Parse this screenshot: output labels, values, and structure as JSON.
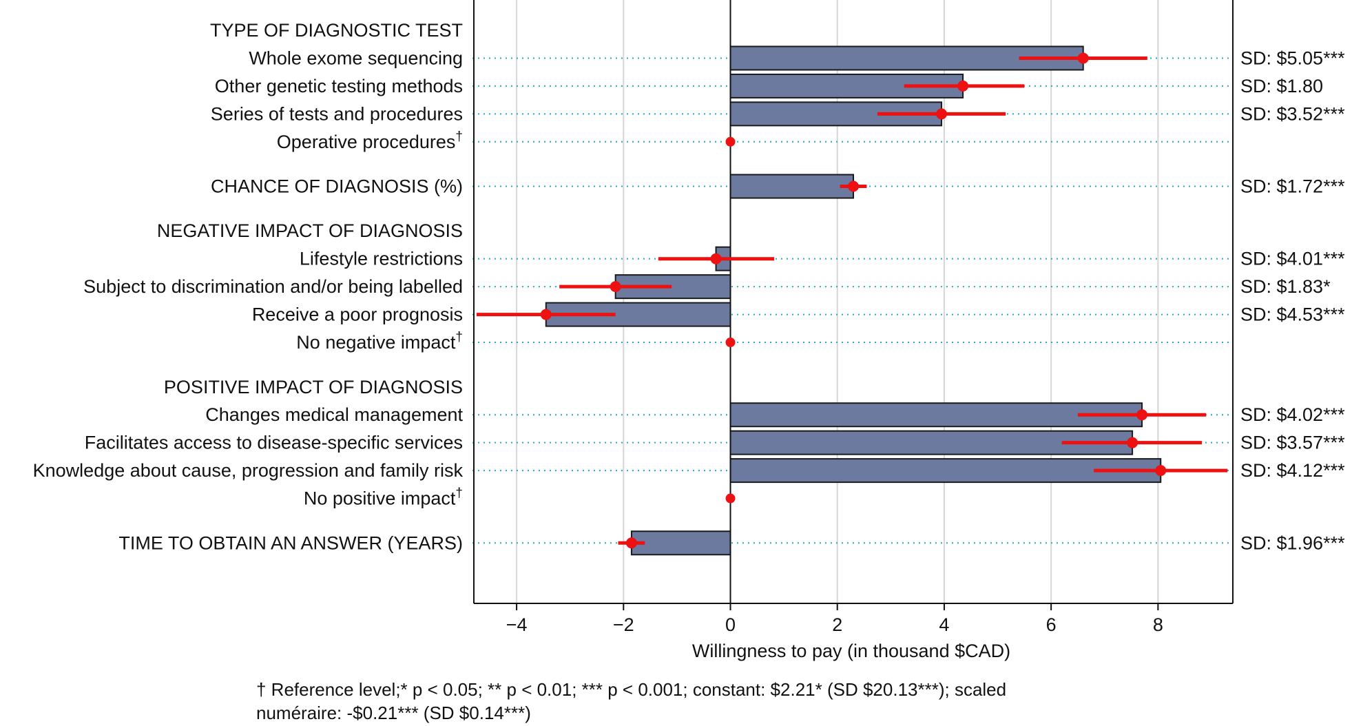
{
  "chart_data": {
    "type": "bar",
    "orientation": "horizontal",
    "xlabel": "Willingness to pay (in thousand $CAD)",
    "xlim": [
      -4.8,
      9.4
    ],
    "xticks": [
      -4,
      -2,
      0,
      2,
      4,
      6,
      8
    ],
    "xtick_labels": [
      "−4",
      "−2",
      "0",
      "2",
      "4",
      "6",
      "8"
    ],
    "grid": "vertical",
    "rows": [
      {
        "kind": "header",
        "label": "TYPE OF DIAGNOSTIC TEST"
      },
      {
        "kind": "item",
        "label": "Whole exome sequencing",
        "value": 6.6,
        "ci": [
          5.4,
          7.8
        ],
        "sd": "SD: $5.05***"
      },
      {
        "kind": "item",
        "label": "Other genetic testing methods",
        "value": 4.35,
        "ci": [
          3.25,
          5.5
        ],
        "sd": "SD: $1.80"
      },
      {
        "kind": "item",
        "label": "Series of tests and procedures",
        "value": 3.95,
        "ci": [
          2.75,
          5.15
        ],
        "sd": "SD: $3.52***"
      },
      {
        "kind": "item",
        "label": "Operative procedures",
        "mark": "†",
        "value": 0,
        "reference": true
      },
      {
        "kind": "gap"
      },
      {
        "kind": "item",
        "label": "CHANCE OF DIAGNOSIS (%)",
        "value": 2.3,
        "ci": [
          2.05,
          2.55
        ],
        "sd": "SD: $1.72***"
      },
      {
        "kind": "gap"
      },
      {
        "kind": "header",
        "label": "NEGATIVE IMPACT OF DIAGNOSIS"
      },
      {
        "kind": "item",
        "label": "Lifestyle restrictions",
        "value": -0.27,
        "ci": [
          -1.35,
          0.82
        ],
        "sd": "SD: $4.01***"
      },
      {
        "kind": "item",
        "label": "Subject to discrimination and/or being labelled",
        "value": -2.15,
        "ci": [
          -3.2,
          -1.1
        ],
        "sd": "SD: $1.83*"
      },
      {
        "kind": "item",
        "label": "Receive a poor prognosis",
        "value": -3.45,
        "ci": [
          -4.75,
          -2.15
        ],
        "sd": "SD: $4.53***"
      },
      {
        "kind": "item",
        "label": "No negative impact",
        "mark": "†",
        "value": 0,
        "reference": true
      },
      {
        "kind": "gap"
      },
      {
        "kind": "header",
        "label": "POSITIVE IMPACT OF DIAGNOSIS"
      },
      {
        "kind": "item",
        "label": "Changes medical management",
        "value": 7.7,
        "ci": [
          6.5,
          8.9
        ],
        "sd": "SD: $4.02***"
      },
      {
        "kind": "item",
        "label": "Facilitates access to disease-specific services",
        "value": 7.52,
        "ci": [
          6.2,
          8.82
        ],
        "sd": "SD: $3.57***"
      },
      {
        "kind": "item",
        "label": "Knowledge about cause, progression and family risk",
        "value": 8.05,
        "ci": [
          6.8,
          9.3
        ],
        "sd": "SD: $4.12***"
      },
      {
        "kind": "item",
        "label": "No positive impact",
        "mark": "†",
        "value": 0,
        "reference": true,
        "noline": true
      },
      {
        "kind": "gap"
      },
      {
        "kind": "item",
        "label": "TIME TO OBTAIN AN ANSWER (YEARS)",
        "value": -1.85,
        "ci": [
          -2.1,
          -1.6
        ],
        "sd": "SD: $1.96***"
      }
    ],
    "colors": {
      "bar": "#6b7a9e",
      "bar_edge": "#1a1a1a",
      "estimate": "#ee1111",
      "guide": "#19b0c8",
      "grid": "#d6d6d6"
    }
  },
  "footnote": {
    "line1": "† Reference level;* p < 0.05; ** p < 0.01; *** p < 0.001; constant: $2.21* (SD $20.13***); scaled",
    "line2": "numéraire:  -$0.21*** (SD $0.14***)"
  }
}
